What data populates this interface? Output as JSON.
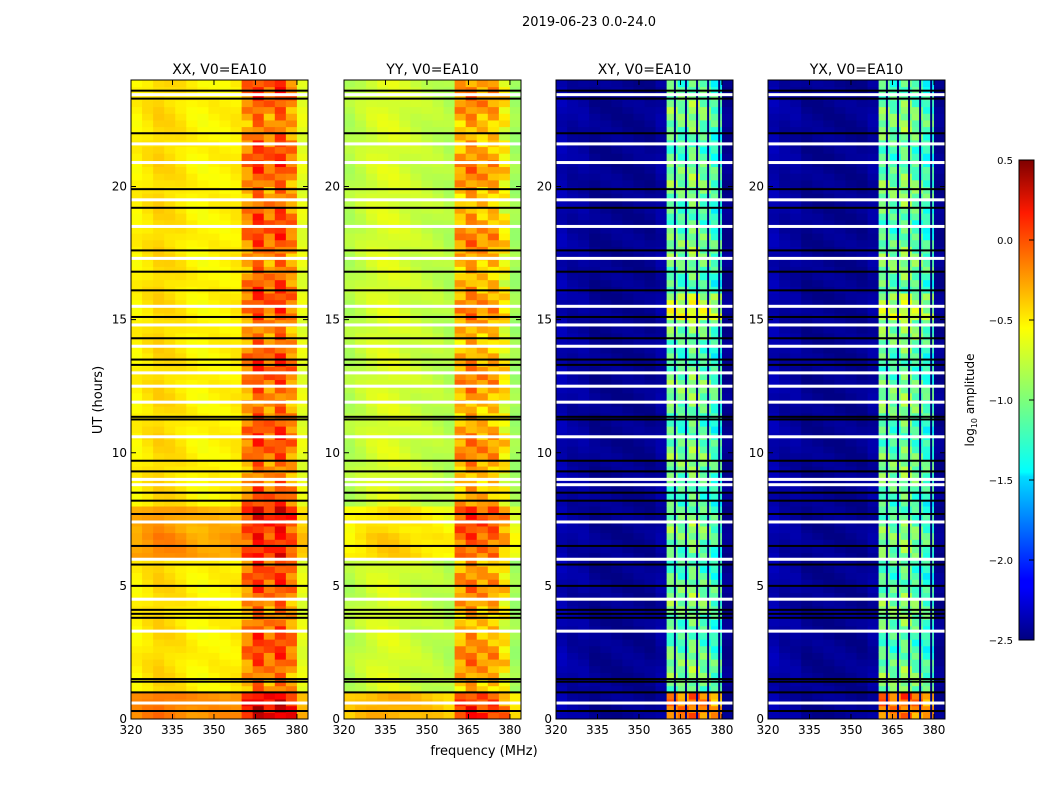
{
  "chart_data": {
    "type": "heatmap",
    "suptitle": "2019-06-23 0.0-24.0",
    "xlabel": "frequency (MHz)",
    "ylabel": "UT (hours)",
    "xlim": [
      320,
      384
    ],
    "ylim": [
      0,
      24
    ],
    "xticks": [
      "320",
      "335",
      "350",
      "365",
      "380"
    ],
    "yticks": [
      "0",
      "5",
      "10",
      "15",
      "20"
    ],
    "freq_bins_mhz": [
      320,
      324,
      328,
      332,
      336,
      340,
      344,
      348,
      352,
      356,
      360,
      364,
      368,
      372,
      376,
      380,
      384
    ],
    "colorbar": {
      "label_prefix": "log",
      "label_sub": "10",
      "label_suffix": " amplitude",
      "range": [
        -2.5,
        0.5
      ],
      "colormap": "jet",
      "ticks": [
        "0.5",
        "0.0",
        "−0.5",
        "−1.0",
        "−1.5",
        "−2.0",
        "−2.5"
      ]
    },
    "flagged_black_ut": [
      0.3,
      1.0,
      1.4,
      1.5,
      3.8,
      3.95,
      4.1,
      5.0,
      5.8,
      6.5,
      7.7,
      8.2,
      8.5,
      9.3,
      9.7,
      11.25,
      11.35,
      13.3,
      13.5,
      14.3,
      15.1,
      16.1,
      16.8,
      17.6,
      19.2,
      19.9,
      22.0,
      23.3,
      23.6
    ],
    "flagged_white_ut": [
      0.6,
      3.3,
      4.5,
      6.0,
      7.4,
      8.8,
      9.0,
      10.6,
      11.9,
      12.5,
      13.0,
      14.0,
      14.8,
      15.5,
      17.3,
      18.5,
      19.5,
      20.9,
      21.6,
      23.45
    ],
    "panels": [
      {
        "title": "XX, V0=EA10",
        "log_amp_by_freq": [
          -0.6,
          -0.55,
          -0.5,
          -0.52,
          -0.55,
          -0.6,
          -0.62,
          -0.6,
          -0.6,
          -0.58,
          -0.3,
          -0.1,
          -0.25,
          -0.1,
          -0.3,
          -0.7
        ],
        "offset_by_hour": [
          0.3,
          0,
          0,
          0,
          0,
          0,
          0.25,
          0.2,
          0,
          0,
          0,
          0,
          0,
          0,
          0,
          0,
          0,
          0,
          0,
          0,
          0,
          0,
          0,
          0
        ]
      },
      {
        "title": "YY, V0=EA10",
        "log_amp_by_freq": [
          -0.85,
          -0.8,
          -0.75,
          -0.72,
          -0.72,
          -0.75,
          -0.78,
          -0.8,
          -0.82,
          -0.85,
          -0.4,
          -0.3,
          -0.4,
          -0.4,
          -0.6,
          -0.9
        ],
        "offset_by_hour": [
          0.35,
          0,
          0,
          0,
          0,
          0,
          0.25,
          0.2,
          0,
          0,
          0,
          0,
          0,
          0,
          0,
          0,
          0,
          0,
          0,
          0,
          0,
          0,
          0,
          0
        ]
      },
      {
        "title": "XY, V0=EA10",
        "log_amp_by_freq": [
          -2.35,
          -2.4,
          -2.4,
          -2.45,
          -2.45,
          -2.45,
          -2.45,
          -2.45,
          -2.45,
          -2.4,
          -1.05,
          -1.1,
          -1.0,
          -1.1,
          -1.2,
          -2.45
        ],
        "offset_by_hour": [
          0.9,
          0,
          0,
          0,
          0,
          0,
          0,
          0,
          0,
          0,
          0,
          0,
          0,
          0,
          0,
          0.3,
          0,
          0,
          0,
          0,
          0,
          0,
          0,
          0
        ]
      },
      {
        "title": "YX, V0=EA10",
        "log_amp_by_freq": [
          -2.35,
          -2.4,
          -2.4,
          -2.45,
          -2.45,
          -2.45,
          -2.45,
          -2.45,
          -2.45,
          -2.4,
          -1.05,
          -1.1,
          -1.0,
          -1.1,
          -1.2,
          -2.45
        ],
        "offset_by_hour": [
          0.9,
          0,
          0,
          0,
          0,
          0,
          0,
          0,
          0,
          0,
          0,
          0,
          0,
          0,
          0,
          0.3,
          0,
          0,
          0,
          0,
          0,
          0,
          0,
          0
        ]
      }
    ]
  }
}
